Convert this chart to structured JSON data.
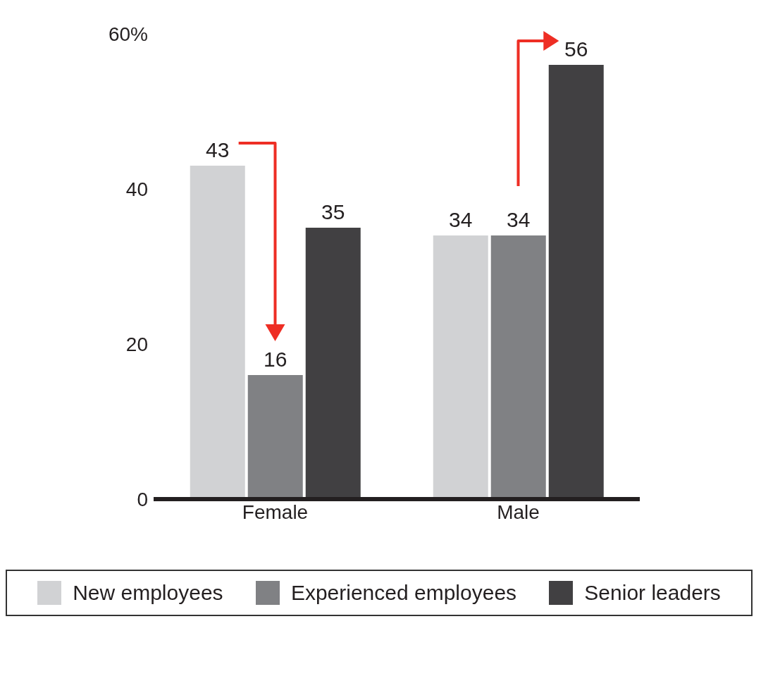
{
  "chart_data": {
    "type": "bar",
    "categories": [
      "Female",
      "Male"
    ],
    "series": [
      {
        "name": "New employees",
        "color": "#d1d2d4",
        "values": [
          43,
          34
        ]
      },
      {
        "name": "Experienced employees",
        "color": "#808184",
        "values": [
          16,
          34
        ]
      },
      {
        "name": "Senior leaders",
        "color": "#414042",
        "values": [
          35,
          56
        ]
      }
    ],
    "ylim": [
      0,
      60
    ],
    "yticks": [
      0,
      20,
      40,
      {
        "value": 60,
        "label": "60%"
      }
    ],
    "grid": false,
    "legend": "bottom",
    "data_labels": true
  }
}
